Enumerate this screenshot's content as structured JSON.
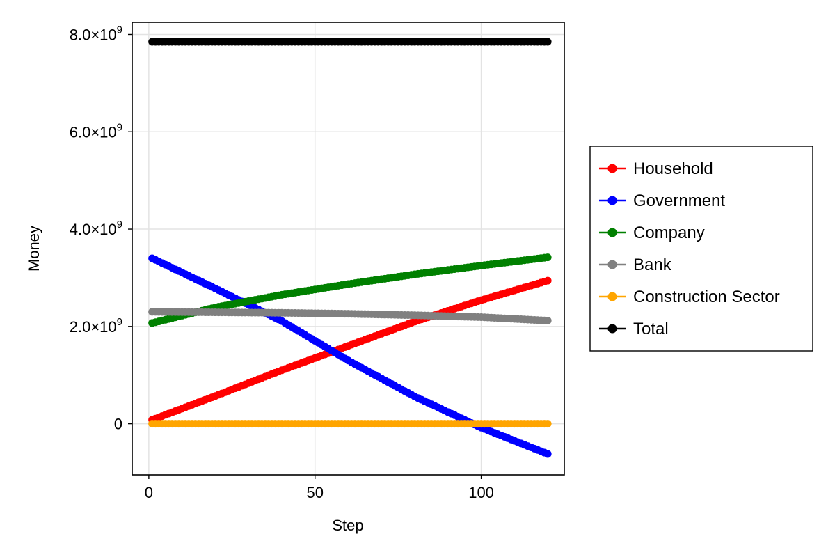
{
  "chart_data": {
    "type": "scatter",
    "xlabel": "Step",
    "ylabel": "Money",
    "xlim": [
      -5,
      125
    ],
    "ylim": [
      -1050000000,
      8250000000
    ],
    "x_ticks": [
      0,
      50,
      100
    ],
    "x_tick_labels": [
      "0",
      "50",
      "100"
    ],
    "y_ticks": [
      0,
      2000000000,
      4000000000,
      6000000000,
      8000000000
    ],
    "y_tick_labels": [
      {
        "mantissa": "0",
        "exponent": ""
      },
      {
        "mantissa": "2.0×10",
        "exponent": "9"
      },
      {
        "mantissa": "4.0×10",
        "exponent": "9"
      },
      {
        "mantissa": "6.0×10",
        "exponent": "9"
      },
      {
        "mantissa": "8.0×10",
        "exponent": "9"
      }
    ],
    "grid": true,
    "legend_position": "right",
    "series": [
      {
        "name": "Household",
        "color": "#ff0000",
        "x": [
          1,
          20,
          40,
          60,
          80,
          100,
          120
        ],
        "y": [
          80000000,
          570000000,
          1100000000,
          1600000000,
          2100000000,
          2540000000,
          2940000000
        ]
      },
      {
        "name": "Government",
        "color": "#0000ff",
        "x": [
          1,
          20,
          40,
          60,
          80,
          100,
          120
        ],
        "y": [
          3400000000,
          2780000000,
          2110000000,
          1300000000,
          560000000,
          -80000000,
          -620000000
        ]
      },
      {
        "name": "Company",
        "color": "#008000",
        "x": [
          1,
          20,
          40,
          60,
          80,
          100,
          120
        ],
        "y": [
          2070000000,
          2390000000,
          2650000000,
          2870000000,
          3070000000,
          3250000000,
          3420000000
        ]
      },
      {
        "name": "Bank",
        "color": "#808080",
        "x": [
          1,
          20,
          40,
          60,
          80,
          100,
          120
        ],
        "y": [
          2300000000,
          2290000000,
          2280000000,
          2260000000,
          2230000000,
          2190000000,
          2120000000
        ]
      },
      {
        "name": "Construction Sector",
        "color": "#ffa500",
        "x": [
          1,
          20,
          40,
          60,
          80,
          100,
          120
        ],
        "y": [
          0,
          0,
          0,
          0,
          0,
          0,
          0
        ]
      },
      {
        "name": "Total",
        "color": "#000000",
        "x": [
          1,
          20,
          40,
          60,
          80,
          100,
          120
        ],
        "y": [
          7850000000,
          7850000000,
          7850000000,
          7850000000,
          7850000000,
          7850000000,
          7850000000
        ]
      }
    ]
  }
}
